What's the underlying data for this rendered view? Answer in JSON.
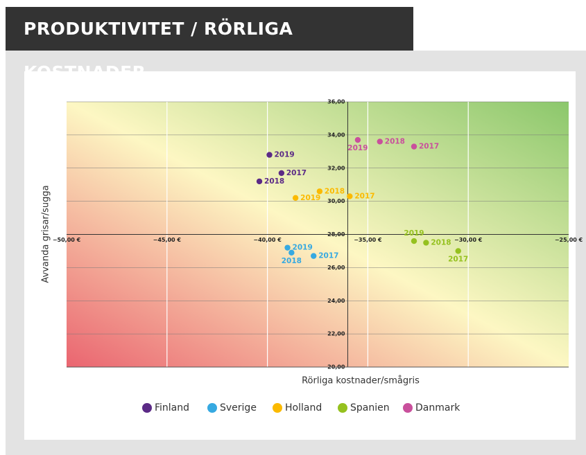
{
  "chart_data": {
    "type": "scatter",
    "title": "PRODUKTIVITET / RÖRLIGA KOSTNADER",
    "x_label": "Rörliga kostnader/smågris",
    "y_label": "Avvanda grisar/sugga",
    "xlim": [
      -50,
      -25
    ],
    "ylim": [
      20,
      36
    ],
    "xticks": [
      {
        "value": -50,
        "label": "−50,00 €"
      },
      {
        "value": -45,
        "label": "−45,00 €"
      },
      {
        "value": -40,
        "label": "−40,00 €"
      },
      {
        "value": -35,
        "label": "−35,00 €"
      },
      {
        "value": -30,
        "label": "−30,00 €"
      },
      {
        "value": -25,
        "label": "−25,00 €"
      }
    ],
    "yticks": [
      {
        "value": 20,
        "label": "20,00"
      },
      {
        "value": 22,
        "label": "22,00"
      },
      {
        "value": 24,
        "label": "24,00"
      },
      {
        "value": 26,
        "label": "26,00"
      },
      {
        "value": 28,
        "label": "28,00"
      },
      {
        "value": 30,
        "label": "30,00"
      },
      {
        "value": 32,
        "label": "32,00"
      },
      {
        "value": 34,
        "label": "34,00"
      },
      {
        "value": 36,
        "label": "36,00"
      }
    ],
    "x_axis_at": 28,
    "y_axis_at": -36,
    "grid": true,
    "series": [
      {
        "name": "Finland",
        "color": "#5b2a86",
        "labels": [
          "2019",
          "2017",
          "2018"
        ],
        "x": [
          -39.9,
          -39.3,
          -40.4
        ],
        "values": [
          32.8,
          31.7,
          31.2
        ]
      },
      {
        "name": "Sverige",
        "color": "#36a9e1",
        "labels": [
          "2019",
          "2018",
          "2017"
        ],
        "x": [
          -39.0,
          -38.8,
          -37.7
        ],
        "values": [
          27.2,
          26.9,
          26.7
        ]
      },
      {
        "name": "Holland",
        "color": "#fbba00",
        "labels": [
          "2019",
          "2018",
          "2017"
        ],
        "x": [
          -38.6,
          -37.4,
          -35.9
        ],
        "values": [
          30.2,
          30.6,
          30.3
        ]
      },
      {
        "name": "Spanien",
        "color": "#95c11f",
        "labels": [
          "2019",
          "2018",
          "2017"
        ],
        "x": [
          -32.7,
          -32.1,
          -30.5
        ],
        "values": [
          27.6,
          27.5,
          27.0
        ]
      },
      {
        "name": "Danmark",
        "color": "#c9509c",
        "labels": [
          "2019",
          "2018",
          "2017"
        ],
        "x": [
          -35.5,
          -34.4,
          -32.7
        ],
        "values": [
          33.7,
          33.6,
          33.3
        ]
      }
    ]
  }
}
